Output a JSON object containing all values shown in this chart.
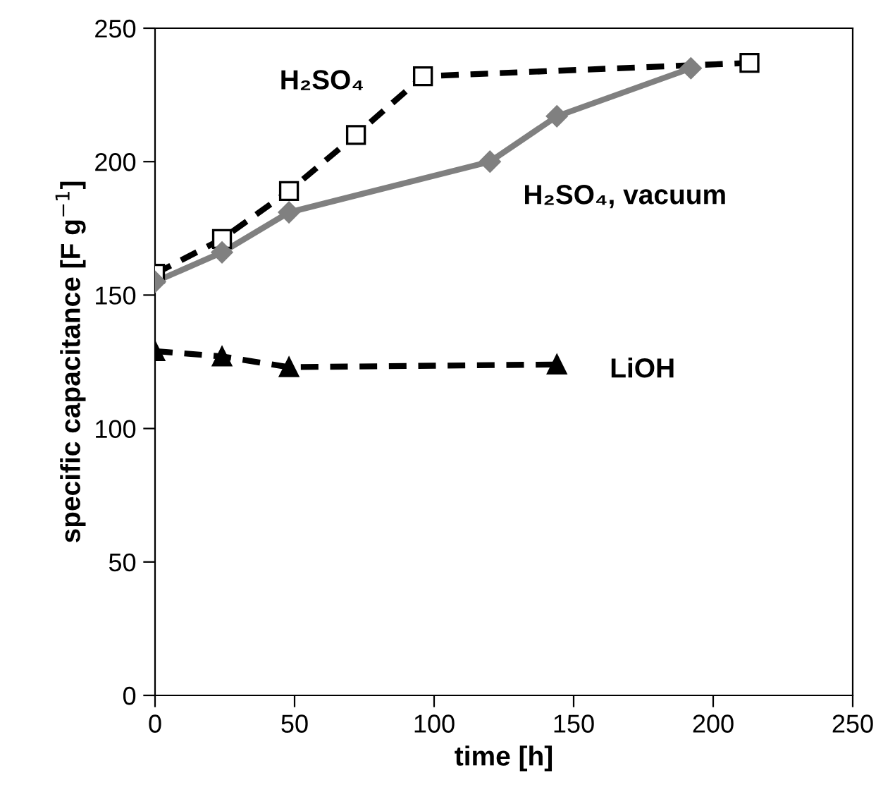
{
  "chart_data": {
    "type": "line",
    "xlabel": "time [h]",
    "ylabel": "specific capacitance [F g$^{−1}$]",
    "xlim": [
      0,
      250
    ],
    "xticks": [
      0,
      50,
      100,
      150,
      200,
      250
    ],
    "ylim": [
      0,
      250
    ],
    "yticks": [
      0,
      50,
      100,
      150,
      200,
      250
    ],
    "grid": false,
    "legend": false,
    "series": [
      {
        "name": "H₂SO₄",
        "color": "#000000",
        "line_style": "dashed",
        "marker": "square",
        "x": [
          0,
          24,
          48,
          72,
          96,
          213
        ],
        "values": [
          158,
          171,
          189,
          210,
          232,
          237
        ]
      },
      {
        "name": "H₂SO₄, vacuum",
        "color": "#808080",
        "line_style": "solid",
        "marker": "diamond",
        "x": [
          0,
          24,
          48,
          120,
          144,
          192
        ],
        "values": [
          155,
          166,
          181,
          200,
          217,
          235
        ]
      },
      {
        "name": "LiOH",
        "color": "#000000",
        "line_style": "dashed",
        "marker": "triangle",
        "x": [
          0,
          24,
          48,
          144
        ],
        "values": [
          129,
          127,
          123,
          124
        ]
      }
    ]
  }
}
